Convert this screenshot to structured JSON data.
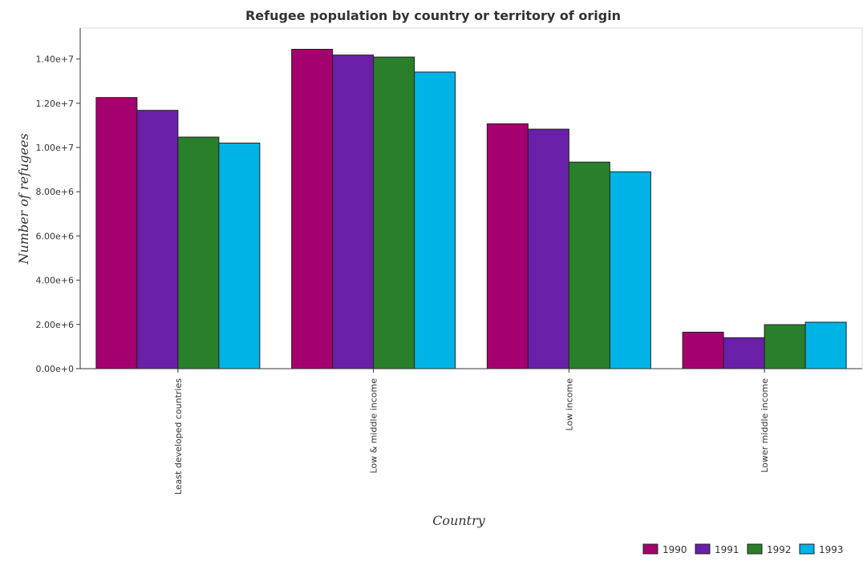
{
  "chart_data": {
    "type": "bar",
    "title": "Refugee population by country or territory of origin",
    "xlabel": "Country",
    "ylabel": "Number of refugees",
    "categories": [
      "Least developed countries",
      "Low & middle income",
      "Low income",
      "Lower middle income"
    ],
    "series": [
      {
        "name": "1990",
        "color": "#a4006e",
        "values": [
          12260000,
          14440000,
          11070000,
          1650000
        ]
      },
      {
        "name": "1991",
        "color": "#6a1fa8",
        "values": [
          11680000,
          14180000,
          10830000,
          1400000
        ]
      },
      {
        "name": "1992",
        "color": "#2a7f2a",
        "values": [
          10470000,
          14090000,
          9340000,
          1990000
        ]
      },
      {
        "name": "1993",
        "color": "#00b3e6",
        "values": [
          10200000,
          13410000,
          8900000,
          2100000
        ]
      }
    ],
    "ylim": [
      0,
      15400000
    ],
    "yticks": [
      0,
      2000000,
      4000000,
      6000000,
      8000000,
      10000000,
      12000000,
      14000000
    ],
    "ytick_labels": [
      "0.00e+0",
      "2.00e+6",
      "4.00e+6",
      "6.00e+6",
      "8.00e+6",
      "1.00e+7",
      "1.20e+7",
      "1.40e+7"
    ],
    "grid": false,
    "legend_position": "bottom-right"
  }
}
